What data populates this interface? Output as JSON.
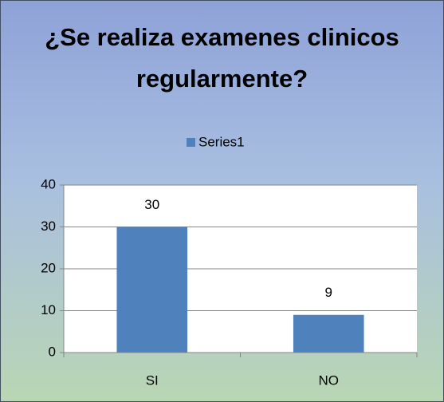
{
  "chart_data": {
    "type": "bar",
    "title": "¿Se realiza examenes clinicos regularmente?",
    "categories": [
      "SI",
      "NO"
    ],
    "series": [
      {
        "name": "Series1",
        "color": "#4f81bd",
        "values": [
          30,
          9
        ]
      }
    ],
    "ylim": [
      0,
      40
    ],
    "yticks": [
      0,
      10,
      20,
      30,
      40
    ],
    "grid": true,
    "legend": "top"
  }
}
